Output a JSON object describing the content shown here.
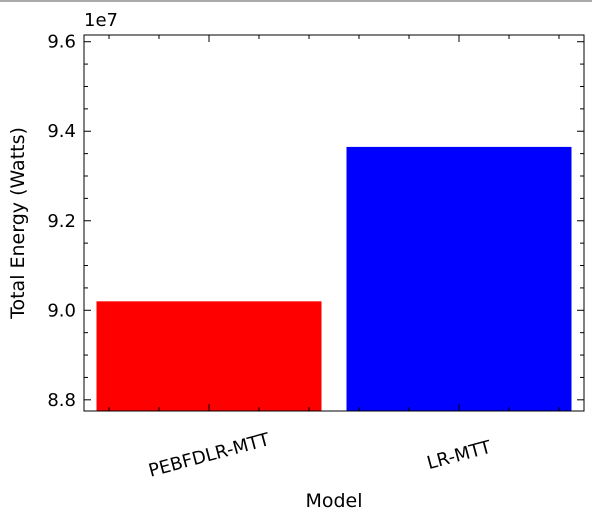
{
  "chart_data": {
    "type": "bar",
    "categories": [
      "PEBFDLR-MTT",
      "LR-MTT"
    ],
    "values": [
      90200000,
      93650000
    ],
    "colors": [
      "#ff0000",
      "#0000ff"
    ],
    "xlabel": "Model",
    "ylabel": "Total Energy (Watts)",
    "offset_text": "1e7",
    "ylim": [
      87750000,
      96150000
    ],
    "yticks": [
      88000000,
      90000000,
      92000000,
      94000000,
      96000000
    ],
    "ytick_labels": [
      "8.8",
      "9.0",
      "9.2",
      "9.4",
      "9.6"
    ],
    "xtick_rotation": 15,
    "grid": false
  }
}
